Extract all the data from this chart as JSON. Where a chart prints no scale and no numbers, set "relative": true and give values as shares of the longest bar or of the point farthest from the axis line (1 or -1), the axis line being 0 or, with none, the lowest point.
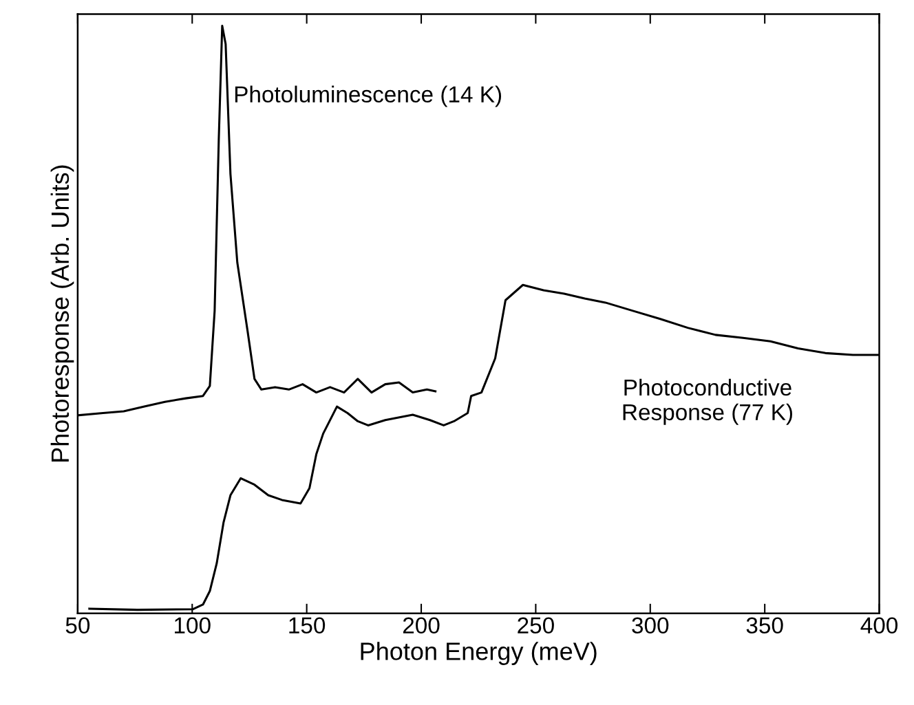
{
  "chart_data": {
    "type": "line",
    "relative": true,
    "xlabel": "Photon Energy (meV)",
    "ylabel": "Photoresponse (Arb. Units)",
    "xlim": [
      50,
      400
    ],
    "xticks": [
      50,
      100,
      150,
      200,
      250,
      300,
      350,
      400
    ],
    "grid": false,
    "legend": false,
    "series": [
      {
        "name": "Photoluminescence (14 K)",
        "color": "#000000",
        "x": [
          50,
          61.1,
          70.1,
          79.1,
          88.1,
          97.2,
          104.7,
          107.7,
          109.8,
          111.6,
          113.1,
          114.6,
          116.7,
          119.7,
          124.2,
          127.2,
          130.2,
          136.2,
          142.2,
          148.2,
          154.2,
          160.2,
          166.3,
          172.3,
          178.3,
          184.3,
          190.3,
          196.3,
          202.5,
          206.2
        ],
        "values": [
          0.337,
          0.341,
          0.344,
          0.352,
          0.36,
          0.366,
          0.37,
          0.387,
          0.515,
          0.806,
          1.0,
          0.969,
          0.748,
          0.597,
          0.48,
          0.399,
          0.381,
          0.385,
          0.381,
          0.39,
          0.376,
          0.385,
          0.376,
          0.399,
          0.376,
          0.39,
          0.393,
          0.376,
          0.381,
          0.378
        ]
      },
      {
        "name": "Photoconductive\nResponse (77 K)",
        "color": "#000000",
        "x": [
          55.1,
          76.1,
          100.2,
          104.7,
          107.7,
          110.7,
          113.7,
          116.7,
          121.2,
          127.2,
          133.2,
          139.2,
          147.3,
          151.2,
          154.2,
          157.2,
          163.2,
          167.8,
          172.3,
          176.8,
          184.3,
          196.3,
          203.8,
          209.8,
          214.3,
          220.3,
          221.8,
          226.3,
          232.3,
          236.8,
          244.4,
          253.4,
          262.4,
          271.4,
          280.4,
          292.4,
          304.4,
          316.4,
          328.5,
          340.5,
          352.5,
          364.5,
          376.5,
          388.5,
          399.9
        ],
        "values": [
          0.008,
          0.006,
          0.007,
          0.015,
          0.038,
          0.085,
          0.155,
          0.201,
          0.23,
          0.219,
          0.201,
          0.193,
          0.187,
          0.213,
          0.271,
          0.306,
          0.352,
          0.341,
          0.327,
          0.32,
          0.329,
          0.338,
          0.329,
          0.32,
          0.327,
          0.341,
          0.37,
          0.376,
          0.434,
          0.533,
          0.559,
          0.55,
          0.544,
          0.536,
          0.529,
          0.515,
          0.501,
          0.486,
          0.474,
          0.469,
          0.463,
          0.451,
          0.443,
          0.44,
          0.44
        ]
      }
    ]
  }
}
